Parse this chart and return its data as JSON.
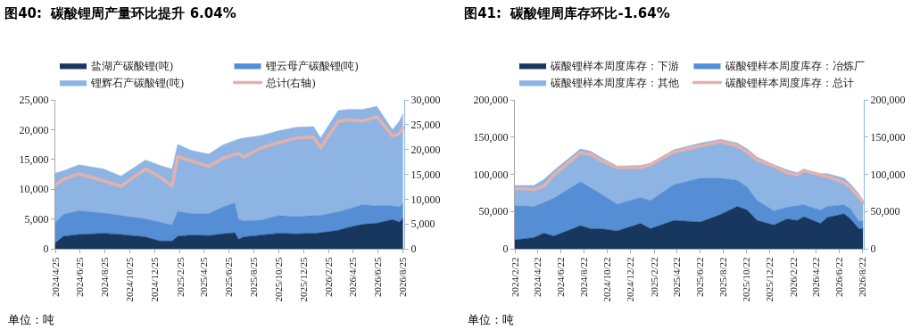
{
  "chart_data": [
    {
      "type": "area",
      "title": "图40:  碳酸锂周产量环比提升 6.04%",
      "stacked": true,
      "legend": "top",
      "annotations": [
        "单位：吨"
      ],
      "x": [
        "2024-04-25",
        "2024-05-15",
        "2024-06-22",
        "2024-08-21",
        "2024-10-03",
        "2024-12-02",
        "2025-01-06",
        "2025-02-05",
        "2025-02-19",
        "2025-03-24",
        "2025-05-06",
        "2025-06-09",
        "2025-07-09",
        "2025-07-18",
        "2025-07-31",
        "2025-09-11",
        "2025-10-24",
        "2025-12-06",
        "2026-01-18",
        "2026-02-04",
        "2026-03-19",
        "2026-04-14",
        "2026-05-18",
        "2026-06-22",
        "2026-07-30",
        "2026-08-16",
        "2026-08-25"
      ],
      "series": [
        {
          "name": "盐湖产碳酸锂(吨)",
          "color": "#17375e",
          "values": [
            1000,
            2100,
            2400,
            2600,
            2400,
            2000,
            1300,
            1300,
            2100,
            2300,
            2200,
            2500,
            2700,
            1600,
            2000,
            2300,
            2600,
            2500,
            2600,
            2700,
            3100,
            3600,
            4100,
            4300,
            4900,
            4500,
            5100
          ]
        },
        {
          "name": "锂云母产碳酸锂(吨)",
          "color": "#558ed5",
          "values": [
            3400,
            3700,
            4000,
            3400,
            3200,
            3000,
            3200,
            2700,
            4200,
            3600,
            3700,
            4500,
            5000,
            3300,
            2700,
            2500,
            3000,
            2900,
            3000,
            2900,
            3100,
            3100,
            3300,
            2900,
            2300,
            2500,
            2600
          ]
        },
        {
          "name": "锂辉石产碳酸锂(吨)",
          "color": "#8eb4e3",
          "values": [
            8300,
            7300,
            7700,
            7400,
            6600,
            9900,
            9500,
            9400,
            11200,
            10600,
            10000,
            10400,
            10500,
            13500,
            13900,
            14200,
            14200,
            15000,
            14900,
            13000,
            17000,
            16700,
            16000,
            16700,
            12800,
            14400,
            15000
          ]
        },
        {
          "name": "总计(右轴)",
          "type": "line",
          "axis": "y2",
          "color": "#e6b0aa",
          "values": [
            12900,
            14000,
            15100,
            13700,
            12600,
            16100,
            14500,
            12600,
            18600,
            17700,
            16600,
            18200,
            19000,
            19200,
            18500,
            20300,
            21400,
            22300,
            22500,
            20300,
            25600,
            26000,
            25700,
            26600,
            22700,
            23200,
            24400
          ]
        }
      ],
      "xlim": [
        "2024-04-25",
        "2026-08-28"
      ],
      "xticks": [
        {
          "value": "2024-04-25",
          "label": "2024/4/25"
        },
        {
          "value": "2024-06-25",
          "label": "2024/6/25"
        },
        {
          "value": "2024-08-25",
          "label": "2024/8/25"
        },
        {
          "value": "2024-10-25",
          "label": "2024/10/25"
        },
        {
          "value": "2024-12-25",
          "label": "2024/12/25"
        },
        {
          "value": "2025-02-25",
          "label": "2025/2/25"
        },
        {
          "value": "2025-04-25",
          "label": "2025/4/25"
        },
        {
          "value": "2025-06-25",
          "label": "2025/6/25"
        },
        {
          "value": "2025-08-25",
          "label": "2025/8/25"
        },
        {
          "value": "2025-10-25",
          "label": "2025/10/25"
        },
        {
          "value": "2025-12-25",
          "label": "2025/12/25"
        },
        {
          "value": "2026-02-25",
          "label": "2026/2/25"
        },
        {
          "value": "2026-04-25",
          "label": "2026/4/25"
        },
        {
          "value": "2026-06-25",
          "label": "2026/6/25"
        },
        {
          "value": "2026-08-25",
          "label": "2026/8/25"
        }
      ],
      "ylim": [
        0,
        25000
      ],
      "yticks": [
        0,
        {
          "value": 5000,
          "label": "5,000"
        },
        {
          "value": 10000,
          "label": "10,000"
        },
        {
          "value": 15000,
          "label": "15,000"
        },
        {
          "value": 20000,
          "label": "20,000"
        },
        {
          "value": 25000,
          "label": "25,000"
        }
      ],
      "y2lim": [
        0,
        30000
      ],
      "y2ticks": [
        0,
        {
          "value": 5000,
          "label": "5,000"
        },
        {
          "value": 10000,
          "label": "10,000"
        },
        {
          "value": 15000,
          "label": "15,000"
        },
        {
          "value": 20000,
          "label": "20,000"
        },
        {
          "value": 25000,
          "label": "25,000"
        },
        {
          "value": 30000,
          "label": "30,000"
        }
      ]
    },
    {
      "type": "area",
      "title": "图41:  碳酸锂周库存环比-1.64%",
      "stacked": true,
      "legend": "top",
      "annotations": [
        "单位：吨"
      ],
      "x": [
        "2024-02-22",
        "2024-04-12",
        "2024-05-08",
        "2024-06-03",
        "2024-08-12",
        "2024-09-08",
        "2024-10-04",
        "2024-11-17",
        "2025-01-17",
        "2025-02-12",
        "2025-04-14",
        "2025-06-23",
        "2025-08-15",
        "2025-09-28",
        "2025-10-24",
        "2025-11-19",
        "2026-01-02",
        "2026-02-06",
        "2026-03-04",
        "2026-03-22",
        "2026-05-04",
        "2026-05-22",
        "2026-07-05",
        "2026-07-22",
        "2026-08-13",
        "2026-08-24"
      ],
      "series": [
        {
          "name": "碳酸锂样本周度库存：下游",
          "color": "#17375e",
          "values": [
            12000,
            15000,
            21000,
            17000,
            31000,
            27000,
            27000,
            24000,
            34000,
            27000,
            38000,
            36000,
            46000,
            57000,
            52000,
            38000,
            32000,
            40000,
            38000,
            43000,
            34000,
            42000,
            47000,
            40000,
            27000,
            27000
          ]
        },
        {
          "name": "碳酸锂样本周度库存：冶炼厂",
          "color": "#558ed5",
          "values": [
            46000,
            42000,
            41000,
            51000,
            59000,
            55000,
            47000,
            36000,
            35000,
            38000,
            48000,
            59000,
            49000,
            35000,
            31000,
            27000,
            19000,
            16000,
            20000,
            16000,
            18000,
            15000,
            12000,
            14000,
            10000,
            10000
          ]
        },
        {
          "name": "碳酸锂样本周度库存：其他",
          "color": "#8eb4e3",
          "values": [
            27000,
            28000,
            31000,
            37000,
            44000,
            49000,
            49000,
            51000,
            43000,
            50000,
            47000,
            47000,
            52000,
            50000,
            51000,
            58000,
            62000,
            50000,
            44000,
            48000,
            49000,
            44000,
            36000,
            33000,
            37000,
            28000
          ]
        },
        {
          "name": "碳酸锂样本周度库存：总计",
          "type": "line",
          "axis": "y2",
          "color": "#e6b0aa",
          "values": [
            81000,
            80000,
            84000,
            99000,
            129000,
            127000,
            119000,
            109000,
            109000,
            113000,
            130000,
            138000,
            144000,
            138000,
            130000,
            119000,
            111000,
            102000,
            99000,
            105000,
            99000,
            97000,
            89000,
            82000,
            70000,
            62000
          ]
        }
      ],
      "xlim": [
        "2024-02-22",
        "2026-08-26"
      ],
      "xticks": [
        {
          "value": "2024-02-22",
          "label": "2024/2/22"
        },
        {
          "value": "2024-04-22",
          "label": "2024/4/22"
        },
        {
          "value": "2024-06-22",
          "label": "2024/6/22"
        },
        {
          "value": "2024-08-22",
          "label": "2024/8/22"
        },
        {
          "value": "2024-10-22",
          "label": "2024/10/22"
        },
        {
          "value": "2024-12-22",
          "label": "2024/12/22"
        },
        {
          "value": "2025-02-22",
          "label": "2025/2/22"
        },
        {
          "value": "2025-04-22",
          "label": "2025/4/22"
        },
        {
          "value": "2025-06-22",
          "label": "2025/6/22"
        },
        {
          "value": "2025-08-22",
          "label": "2025/8/22"
        },
        {
          "value": "2025-10-22",
          "label": "2025/10/22"
        },
        {
          "value": "2025-12-22",
          "label": "2025/12/22"
        },
        {
          "value": "2026-02-22",
          "label": "2026/2/22"
        },
        {
          "value": "2026-04-22",
          "label": "2026/4/22"
        },
        {
          "value": "2026-06-22",
          "label": "2026/6/22"
        },
        {
          "value": "2026-08-22",
          "label": "2026/8/22"
        }
      ],
      "ylim": [
        0,
        200000
      ],
      "yticks": [
        0,
        {
          "value": 50000,
          "label": "50,000"
        },
        {
          "value": 100000,
          "label": "100,000"
        },
        {
          "value": 150000,
          "label": "150,000"
        },
        {
          "value": 200000,
          "label": "200,000"
        }
      ],
      "y2lim": [
        0,
        200000
      ],
      "y2ticks": [
        0,
        {
          "value": 50000,
          "label": "50,000"
        },
        {
          "value": 100000,
          "label": "100,000"
        },
        {
          "value": 150000,
          "label": "150,000"
        },
        {
          "value": 200000,
          "label": "200,000"
        }
      ]
    }
  ]
}
